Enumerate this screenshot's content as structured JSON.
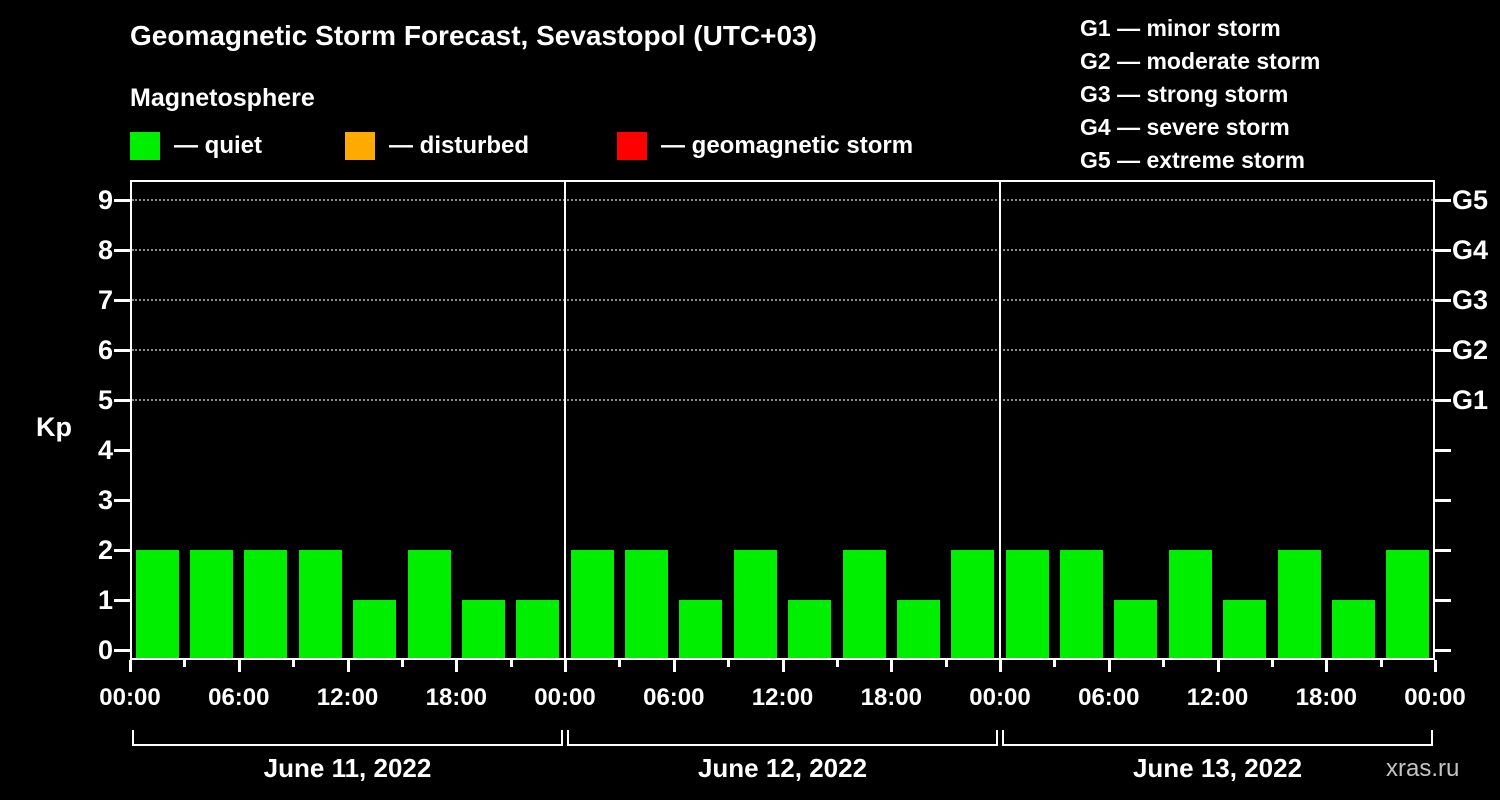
{
  "header": {
    "title": "Geomagnetic Storm Forecast, Sevastopol (UTC+03)",
    "subtitle": "Magnetosphere"
  },
  "legend": {
    "items": [
      {
        "id": "quiet",
        "label": "— quiet",
        "color": "#00ee00"
      },
      {
        "id": "disturbed",
        "label": "— disturbed",
        "color": "#ffaa00"
      },
      {
        "id": "geomagnetic-storm",
        "label": "— geomagnetic storm",
        "color": "#ff0000"
      }
    ]
  },
  "storm_scale": {
    "items": [
      "G1 — minor storm",
      "G2 — moderate storm",
      "G3 — strong storm",
      "G4 — severe storm",
      "G5 — extreme storm"
    ]
  },
  "chart_data": {
    "type": "bar",
    "title": "Geomagnetic Storm Forecast, Sevastopol (UTC+03)",
    "ylabel": "Kp",
    "ylim": [
      0,
      9.5
    ],
    "yticks": [
      0,
      1,
      2,
      3,
      4,
      5,
      6,
      7,
      8,
      9
    ],
    "bar_interval_hours": 3,
    "bar_color": "#00ee00",
    "grid_kp_levels": [
      5,
      6,
      7,
      8,
      9
    ],
    "legend_position": "top",
    "grid": "dotted horizontal at storm levels only",
    "right_axis": [
      {
        "kp": 5,
        "label": "G1"
      },
      {
        "kp": 6,
        "label": "G2"
      },
      {
        "kp": 7,
        "label": "G3"
      },
      {
        "kp": 8,
        "label": "G4"
      },
      {
        "kp": 9,
        "label": "G5"
      }
    ],
    "x_tick_labels": [
      "00:00",
      "06:00",
      "12:00",
      "18:00",
      "00:00",
      "06:00",
      "12:00",
      "18:00",
      "00:00",
      "06:00",
      "12:00",
      "18:00",
      "00:00"
    ],
    "days": [
      {
        "date": "June 11, 2022",
        "kp_values": [
          2,
          2,
          2,
          2,
          1,
          2,
          1,
          1
        ]
      },
      {
        "date": "June 12, 2022",
        "kp_values": [
          2,
          2,
          1,
          2,
          1,
          2,
          1,
          2
        ]
      },
      {
        "date": "June 13, 2022",
        "kp_values": [
          2,
          2,
          1,
          2,
          1,
          2,
          1,
          2
        ]
      }
    ]
  },
  "watermark": "xras.ru"
}
